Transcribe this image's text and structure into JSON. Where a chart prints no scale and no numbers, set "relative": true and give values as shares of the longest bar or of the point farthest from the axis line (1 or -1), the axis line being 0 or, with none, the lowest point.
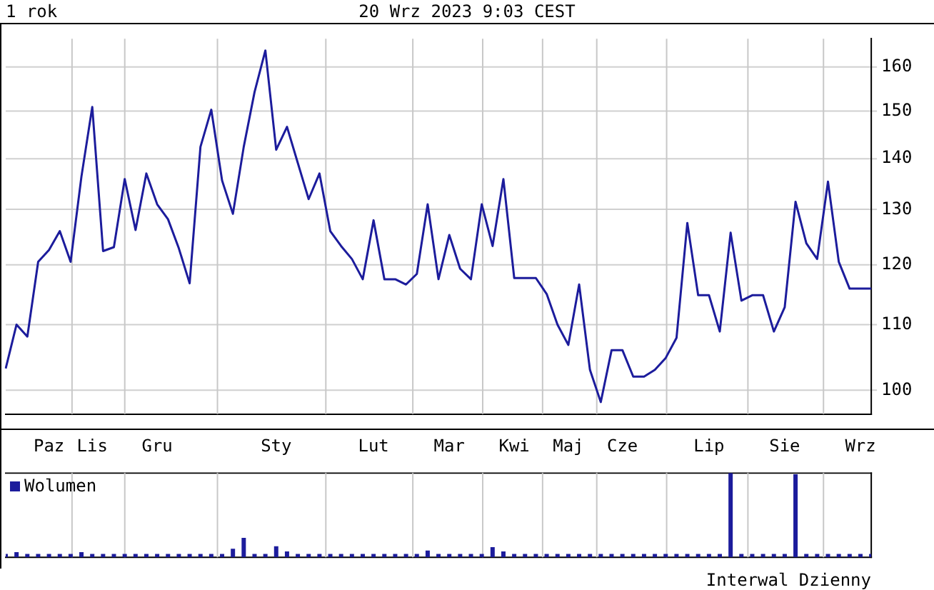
{
  "chart_data": [
    {
      "type": "line",
      "title": "1 rok",
      "subtitle": "20 Wrz 2023 9:03 CEST",
      "categories": [
        null,
        null,
        null,
        null,
        null,
        null,
        null,
        null,
        null,
        null,
        null,
        null,
        null,
        null,
        null,
        null,
        null,
        null,
        null,
        null,
        null,
        null,
        null,
        null,
        null,
        null,
        null,
        null,
        null,
        null,
        null,
        null,
        null,
        null,
        null,
        null,
        null,
        null,
        null,
        null,
        null,
        null,
        null,
        null,
        null,
        null,
        null,
        null,
        null,
        null,
        null,
        null,
        null,
        null,
        null,
        null,
        null,
        null,
        null,
        null,
        null,
        null,
        null,
        null,
        null,
        null,
        null,
        null,
        null,
        null,
        null,
        null,
        null,
        null,
        null,
        null,
        null,
        null,
        null,
        null,
        null
      ],
      "series": [
        {
          "color": "#1c1c9c",
          "values": [
            103.2,
            110.0,
            108.1,
            120.5,
            122.6,
            126.0,
            120.5,
            136.4,
            150.9,
            122.4,
            123.1,
            135.9,
            126.2,
            137.0,
            131.0,
            128.2,
            122.9,
            116.8,
            142.4,
            150.3,
            135.6,
            129.2,
            142.4,
            154.2,
            163.8,
            141.8,
            146.6,
            139.1,
            132.0,
            137.0,
            126.0,
            123.3,
            121.0,
            117.5,
            128.0,
            117.5,
            117.5,
            116.6,
            118.4,
            131.0,
            117.5,
            125.3,
            119.3,
            117.5,
            131.0,
            123.3,
            135.9,
            117.7,
            117.7,
            117.7,
            115.0,
            110.0,
            106.8,
            116.6,
            103.0,
            98.3,
            106.0,
            106.0,
            102.0,
            102.0,
            103.0,
            104.8,
            107.9,
            127.5,
            114.8,
            114.8,
            108.9,
            125.7,
            113.9,
            114.8,
            114.8,
            108.9,
            112.8,
            131.5,
            123.8,
            121.0,
            135.4,
            120.5,
            115.9,
            115.9,
            115.9
          ]
        }
      ],
      "log": "y",
      "ylim": [
        96.6,
        166.6
      ],
      "yticks": [
        100,
        110,
        120,
        130,
        140,
        150,
        160
      ],
      "grid": true,
      "marker": "none",
      "legend": false,
      "tick_labels": "y"
    },
    {
      "type": "bar",
      "relative": true,
      "tick_labels": "x",
      "grid": "x",
      "legend": "top left",
      "annotations": [
        "Interwal Dzienny"
      ],
      "categories": [
        null,
        null,
        null,
        null,
        "Paz",
        null,
        null,
        null,
        "Lis",
        null,
        null,
        null,
        null,
        null,
        "Gru",
        null,
        null,
        null,
        null,
        null,
        null,
        null,
        null,
        null,
        null,
        "Sty",
        null,
        null,
        null,
        null,
        null,
        null,
        null,
        null,
        "Lut",
        null,
        null,
        null,
        null,
        null,
        null,
        "Mar",
        null,
        null,
        null,
        null,
        null,
        "Kwi",
        null,
        null,
        null,
        null,
        "Maj",
        null,
        null,
        null,
        null,
        "Cze",
        null,
        null,
        null,
        null,
        null,
        null,
        null,
        "Lip",
        null,
        null,
        null,
        null,
        null,
        null,
        "Sie",
        null,
        null,
        null,
        null,
        null,
        null,
        "Wrz",
        null
      ],
      "series": [
        {
          "name": "Wolumen",
          "color": "#1c1c9c",
          "values": [
            0.04,
            0.06,
            0.04,
            0.04,
            0.04,
            0.04,
            0.04,
            0.06,
            0.04,
            0.04,
            0.04,
            0.04,
            0.04,
            0.04,
            0.04,
            0.04,
            0.04,
            0.04,
            0.04,
            0.04,
            0.04,
            0.1,
            0.23,
            0.04,
            0.04,
            0.13,
            0.07,
            0.04,
            0.04,
            0.04,
            0.04,
            0.04,
            0.04,
            0.04,
            0.04,
            0.04,
            0.04,
            0.04,
            0.04,
            0.08,
            0.04,
            0.04,
            0.04,
            0.04,
            0.04,
            0.12,
            0.07,
            0.04,
            0.04,
            0.04,
            0.04,
            0.04,
            0.04,
            0.04,
            0.04,
            0.04,
            0.04,
            0.04,
            0.04,
            0.04,
            0.04,
            0.04,
            0.04,
            0.04,
            0.04,
            0.04,
            0.04,
            1,
            0.04,
            0.04,
            0.04,
            0.04,
            0.04,
            0.985,
            0.04,
            0.04,
            0.04,
            0.04,
            0.04,
            0.04,
            0.04
          ]
        }
      ]
    }
  ]
}
